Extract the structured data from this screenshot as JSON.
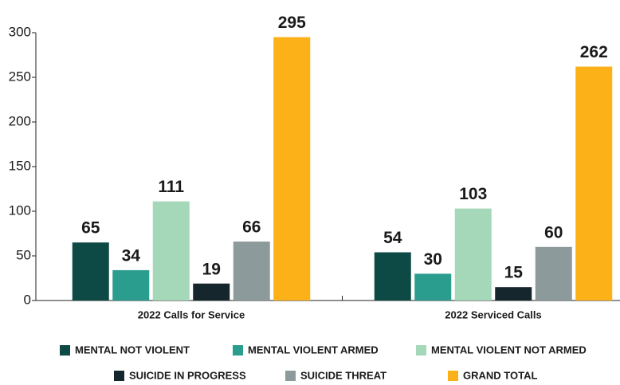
{
  "chart_data": {
    "type": "bar",
    "categories": [
      "2022 Calls for Service",
      "2022 Serviced Calls"
    ],
    "series": [
      {
        "name": "MENTAL NOT VIOLENT",
        "color": "#0e4a45",
        "values": [
          65,
          54
        ]
      },
      {
        "name": "MENTAL VIOLENT ARMED",
        "color": "#2a9d8f",
        "values": [
          34,
          30
        ]
      },
      {
        "name": "MENTAL VIOLENT NOT ARMED",
        "color": "#a4d8b8",
        "values": [
          111,
          103
        ]
      },
      {
        "name": "SUICIDE IN PROGRESS",
        "color": "#15262c",
        "values": [
          19,
          15
        ]
      },
      {
        "name": "SUICIDE THREAT",
        "color": "#8c9a9b",
        "values": [
          66,
          60
        ]
      },
      {
        "name": "GRAND TOTAL",
        "color": "#fbb117",
        "values": [
          295,
          262
        ]
      }
    ],
    "ylim": [
      0,
      300
    ],
    "yticks": [
      0,
      50,
      100,
      150,
      200,
      250,
      300
    ],
    "legend": "bottom"
  }
}
